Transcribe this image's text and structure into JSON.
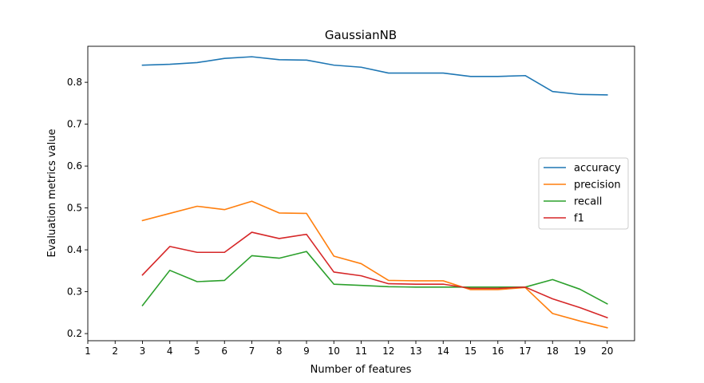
{
  "chart_data": {
    "type": "line",
    "title": "GaussianNB",
    "xlabel": "Number of features",
    "ylabel": "Evaluation metrics value",
    "x": [
      3,
      4,
      5,
      6,
      7,
      8,
      9,
      10,
      11,
      12,
      13,
      14,
      15,
      16,
      17,
      18,
      19,
      20
    ],
    "xticks": [
      1,
      2,
      3,
      4,
      5,
      6,
      7,
      8,
      9,
      10,
      11,
      12,
      13,
      14,
      15,
      16,
      17,
      18,
      19,
      20
    ],
    "yticks": [
      0.2,
      0.3,
      0.4,
      0.5,
      0.6,
      0.7,
      0.8
    ],
    "ytick_labels": [
      "0.2",
      "0.3",
      "0.4",
      "0.5",
      "0.6",
      "0.7",
      "0.8"
    ],
    "xlim": [
      1,
      21
    ],
    "ylim": [
      0.183,
      0.886
    ],
    "grid": false,
    "legend_position": "center-right",
    "series": [
      {
        "name": "accuracy",
        "color": "#1f77b4",
        "values": [
          0.841,
          0.843,
          0.847,
          0.857,
          0.861,
          0.854,
          0.853,
          0.841,
          0.836,
          0.822,
          0.822,
          0.822,
          0.814,
          0.814,
          0.816,
          0.778,
          0.771,
          0.77
        ]
      },
      {
        "name": "precision",
        "color": "#ff7f0e",
        "values": [
          0.47,
          0.487,
          0.504,
          0.496,
          0.516,
          0.488,
          0.487,
          0.385,
          0.367,
          0.327,
          0.326,
          0.326,
          0.305,
          0.305,
          0.31,
          0.248,
          0.23,
          0.214
        ]
      },
      {
        "name": "recall",
        "color": "#2ca02c",
        "values": [
          0.267,
          0.351,
          0.324,
          0.327,
          0.386,
          0.38,
          0.396,
          0.318,
          0.315,
          0.312,
          0.311,
          0.311,
          0.311,
          0.311,
          0.311,
          0.329,
          0.306,
          0.271
        ]
      },
      {
        "name": "f1",
        "color": "#d62728",
        "values": [
          0.34,
          0.408,
          0.394,
          0.394,
          0.442,
          0.427,
          0.437,
          0.347,
          0.338,
          0.319,
          0.318,
          0.318,
          0.308,
          0.308,
          0.311,
          0.283,
          0.262,
          0.238
        ]
      }
    ]
  }
}
